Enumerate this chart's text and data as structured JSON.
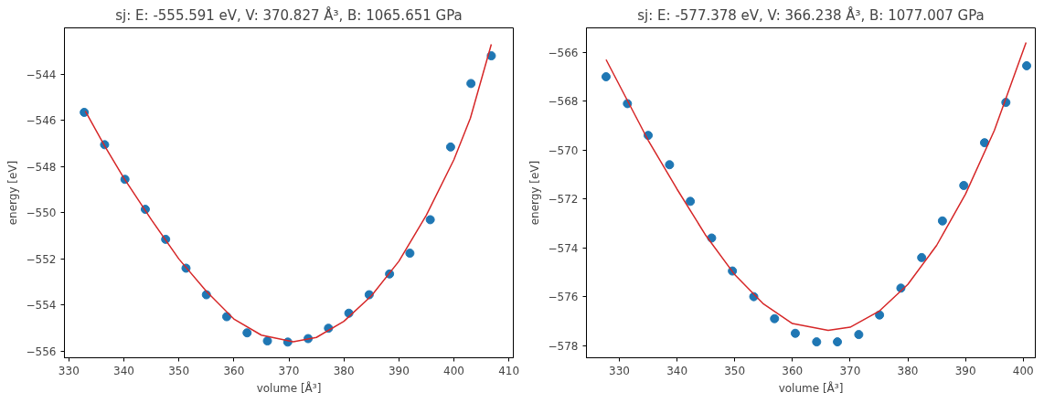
{
  "chart_data": [
    {
      "type": "scatter",
      "title": "sj: E: -555.591 eV, V: 370.827 Å³, B: 1065.651 GPa",
      "xlabel": "volume [Å³]",
      "ylabel": "energy [eV]",
      "grid": false,
      "marker": "circle",
      "xlim": [
        329.2,
        410.8
      ],
      "ylim": [
        -556.28,
        -541.99
      ],
      "xticks": [
        330,
        340,
        350,
        360,
        370,
        380,
        390,
        400,
        410
      ],
      "yticks": [
        {
          "value": -556,
          "label": "−556"
        },
        {
          "value": -554,
          "label": "−554"
        },
        {
          "value": -552,
          "label": "−552"
        },
        {
          "value": -550,
          "label": "−550"
        },
        {
          "value": -548,
          "label": "−548"
        },
        {
          "value": -546,
          "label": "−546"
        },
        {
          "value": -544,
          "label": "−544"
        }
      ],
      "series": [
        {
          "color": "#1f77b4",
          "x": [
            332.8,
            336.5,
            340.2,
            343.9,
            347.6,
            351.3,
            355.0,
            358.7,
            362.4,
            366.1,
            369.8,
            373.5,
            377.2,
            380.9,
            384.6,
            388.3,
            392.0,
            395.7,
            399.4,
            403.1,
            406.8
          ],
          "values": [
            -545.65,
            -547.05,
            -548.55,
            -549.85,
            -551.15,
            -552.4,
            -553.55,
            -554.5,
            -555.2,
            -555.55,
            -555.6,
            -555.45,
            -555.0,
            -554.35,
            -553.55,
            -552.65,
            -551.75,
            -550.3,
            -547.15,
            -544.4,
            -543.2
          ]
        },
        {
          "type": "line",
          "color": "#d62728",
          "marker": "none",
          "x": [
            333,
            336.5,
            340,
            345,
            350,
            355,
            360,
            365,
            370.8,
            375,
            380,
            385,
            390,
            395,
            400,
            403,
            406.8
          ],
          "values": [
            -545.6,
            -547.1,
            -548.5,
            -550.3,
            -552.0,
            -553.4,
            -554.6,
            -555.3,
            -555.59,
            -555.4,
            -554.7,
            -553.6,
            -552.1,
            -550.1,
            -547.7,
            -545.9,
            -542.7
          ]
        }
      ]
    },
    {
      "type": "scatter",
      "title": "sj: E: -577.378 eV, V: 366.238 Å³, B: 1077.007 GPa",
      "xlabel": "volume [Å³]",
      "ylabel": "energy [eV]",
      "grid": false,
      "marker": "circle",
      "xlim": [
        324.3,
        402.1
      ],
      "ylim": [
        -578.5,
        -565.0
      ],
      "xticks": [
        330,
        340,
        350,
        360,
        370,
        380,
        390,
        400
      ],
      "yticks": [
        {
          "value": -578,
          "label": "−578"
        },
        {
          "value": -576,
          "label": "−576"
        },
        {
          "value": -574,
          "label": "−574"
        },
        {
          "value": -572,
          "label": "−572"
        },
        {
          "value": -570,
          "label": "−570"
        },
        {
          "value": -568,
          "label": "−568"
        },
        {
          "value": -566,
          "label": "−566"
        }
      ],
      "series": [
        {
          "color": "#1f77b4",
          "x": [
            327.7,
            331.4,
            335.0,
            338.7,
            342.3,
            346.0,
            349.6,
            353.3,
            356.9,
            360.5,
            364.2,
            367.8,
            371.5,
            375.1,
            378.8,
            382.4,
            386.0,
            389.7,
            393.3,
            397.0,
            400.6
          ],
          "values": [
            -567.0,
            -568.1,
            -569.4,
            -570.6,
            -572.1,
            -573.6,
            -574.95,
            -576.0,
            -576.9,
            -577.5,
            -577.85,
            -577.85,
            -577.55,
            -576.75,
            -575.65,
            -574.4,
            -572.9,
            -571.45,
            -569.7,
            -568.05,
            -566.55
          ]
        },
        {
          "type": "line",
          "color": "#d62728",
          "marker": "none",
          "x": [
            327.7,
            335,
            340,
            345,
            350,
            355,
            360,
            366.2,
            370,
            375,
            380,
            385,
            390,
            395,
            400.5
          ],
          "values": [
            -566.3,
            -569.6,
            -571.6,
            -573.5,
            -575.1,
            -576.3,
            -577.1,
            -577.38,
            -577.25,
            -576.6,
            -575.5,
            -573.9,
            -571.8,
            -569.2,
            -565.6
          ]
        }
      ]
    }
  ]
}
